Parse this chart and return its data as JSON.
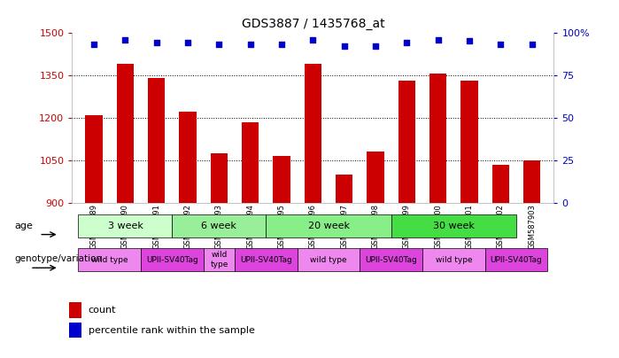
{
  "title": "GDS3887 / 1435768_at",
  "samples": [
    "GSM587889",
    "GSM587890",
    "GSM587891",
    "GSM587892",
    "GSM587893",
    "GSM587894",
    "GSM587895",
    "GSM587896",
    "GSM587897",
    "GSM587898",
    "GSM587899",
    "GSM587900",
    "GSM587901",
    "GSM587902",
    "GSM587903"
  ],
  "counts": [
    1210,
    1390,
    1340,
    1220,
    1075,
    1185,
    1065,
    1390,
    1000,
    1080,
    1330,
    1355,
    1330,
    1035,
    1050
  ],
  "percentile_ranks": [
    93,
    96,
    94,
    94,
    93,
    93,
    93,
    96,
    92,
    92,
    94,
    96,
    95,
    93,
    93
  ],
  "ylim_left": [
    900,
    1500
  ],
  "ylim_right": [
    0,
    100
  ],
  "yticks_left": [
    900,
    1050,
    1200,
    1350,
    1500
  ],
  "yticks_right": [
    0,
    25,
    50,
    75,
    100
  ],
  "bar_color": "#cc0000",
  "dot_color": "#0000cc",
  "age_groups": [
    {
      "label": "3 week",
      "start": 0,
      "end": 3,
      "color": "#ccffcc"
    },
    {
      "label": "6 week",
      "start": 3,
      "end": 6,
      "color": "#99ee99"
    },
    {
      "label": "20 week",
      "start": 6,
      "end": 10,
      "color": "#88ee88"
    },
    {
      "label": "30 week",
      "start": 10,
      "end": 14,
      "color": "#44dd44"
    }
  ],
  "genotype_groups": [
    {
      "label": "wild type",
      "start": 0,
      "end": 2,
      "color": "#ee88ee"
    },
    {
      "label": "UPII-SV40Tag",
      "start": 2,
      "end": 4,
      "color": "#dd44dd"
    },
    {
      "label": "wild\ntype",
      "start": 4,
      "end": 5,
      "color": "#ee88ee"
    },
    {
      "label": "UPII-SV40Tag",
      "start": 5,
      "end": 7,
      "color": "#dd44dd"
    },
    {
      "label": "wild type",
      "start": 7,
      "end": 9,
      "color": "#ee88ee"
    },
    {
      "label": "UPII-SV40Tag",
      "start": 9,
      "end": 11,
      "color": "#dd44dd"
    },
    {
      "label": "wild type",
      "start": 11,
      "end": 13,
      "color": "#ee88ee"
    },
    {
      "label": "UPII-SV40Tag",
      "start": 13,
      "end": 15,
      "color": "#dd44dd"
    }
  ],
  "age_row_label": "age",
  "geno_row_label": "genotype/variation",
  "legend_count_label": "count",
  "legend_pct_label": "percentile rank within the sample",
  "grid_color": "#888888",
  "tick_color_left": "#cc0000",
  "tick_color_right": "#0000cc",
  "bar_color_legend": "#cc0000",
  "dot_color_legend": "#0000cc"
}
